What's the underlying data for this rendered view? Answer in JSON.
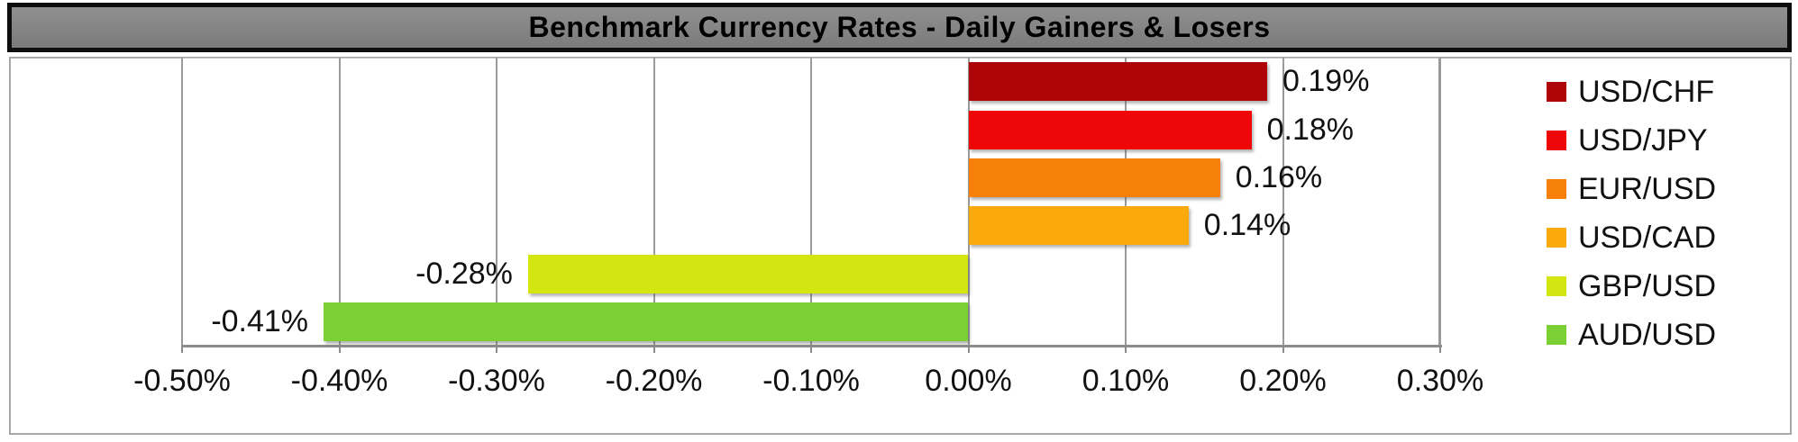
{
  "title": "Benchmark Currency Rates - Daily Gainers & Losers",
  "colors": {
    "title_bar_fill": "#848484",
    "title_bar_border": "#0e0e0e",
    "card_border": "#a8a8a8",
    "gridline": "#9a9a9a",
    "axis_line": "#8c8c8c",
    "label_text": "#111111"
  },
  "chart_data": {
    "type": "bar",
    "orientation": "horizontal",
    "title": "Benchmark Currency Rates - Daily Gainers & Losers",
    "categories": [
      "USD/CHF",
      "USD/JPY",
      "EUR/USD",
      "USD/CAD",
      "GBP/USD",
      "AUD/USD"
    ],
    "values": [
      0.19,
      0.18,
      0.16,
      0.14,
      -0.28,
      -0.41
    ],
    "value_labels": [
      "0.19%",
      "0.18%",
      "0.16%",
      "0.14%",
      "-0.28%",
      "-0.41%"
    ],
    "bar_colors": [
      "#ae0508",
      "#ee0608",
      "#f68009",
      "#faaa0c",
      "#d3e612",
      "#7bd133"
    ],
    "xlim": [
      -0.5,
      0.3
    ],
    "x_ticks": [
      -0.5,
      -0.4,
      -0.3,
      -0.2,
      -0.1,
      0.0,
      0.1,
      0.2,
      0.3
    ],
    "x_tick_labels": [
      "-0.50%",
      "-0.40%",
      "-0.30%",
      "-0.20%",
      "-0.10%",
      "0.00%",
      "0.10%",
      "0.20%",
      "0.30%"
    ],
    "grid": true,
    "legend_position": "right",
    "legend_entries": [
      "USD/CHF",
      "USD/JPY",
      "EUR/USD",
      "USD/CAD",
      "GBP/USD",
      "AUD/USD"
    ]
  }
}
